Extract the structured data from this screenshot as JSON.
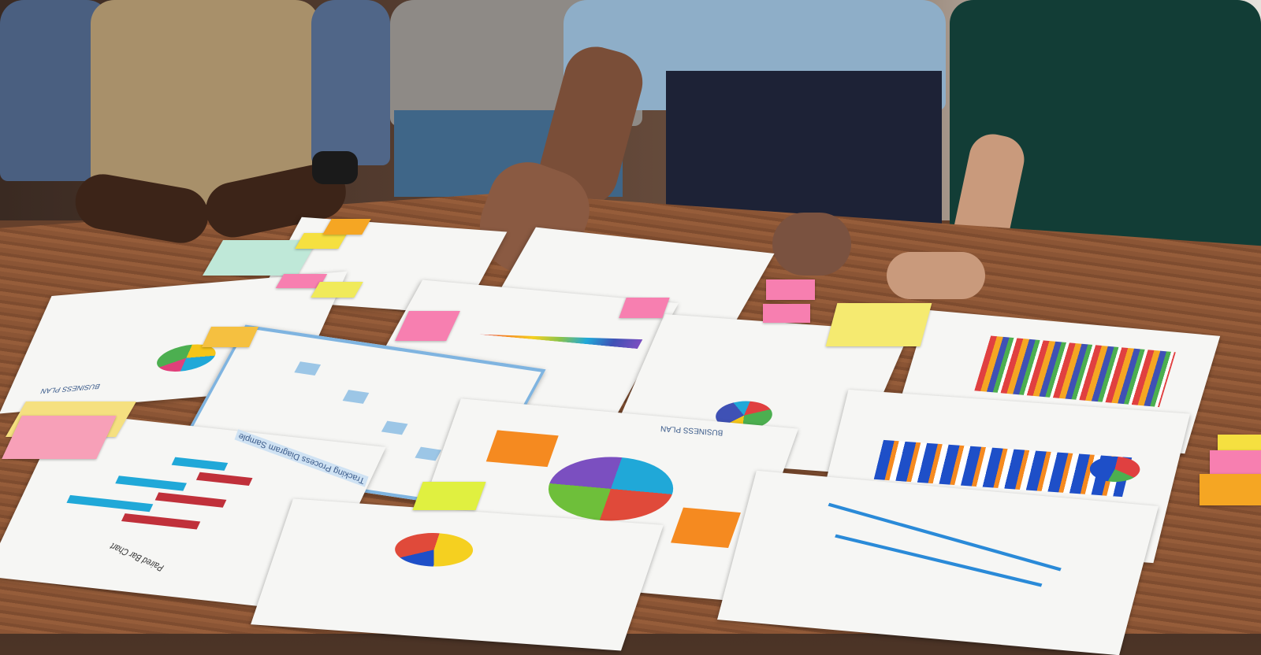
{
  "scene": "photo",
  "papers": {
    "paired_bar_chart_title": "Paired Bar Chart",
    "process_diagram_title": "Tracking Process Diagram Sample",
    "business_plan_left": "BUSINESS PLAN",
    "business_plan_center": "BUSINESS PLAN"
  },
  "colors": {
    "table": "#8b5535",
    "sticky_yellow": "#f5e66a",
    "sticky_pink": "#f77fb0",
    "sticky_orange": "#f5a623",
    "chart_blue": "#2a6fd6",
    "chart_red": "#c0303a",
    "chart_cyan": "#20a8d8"
  }
}
